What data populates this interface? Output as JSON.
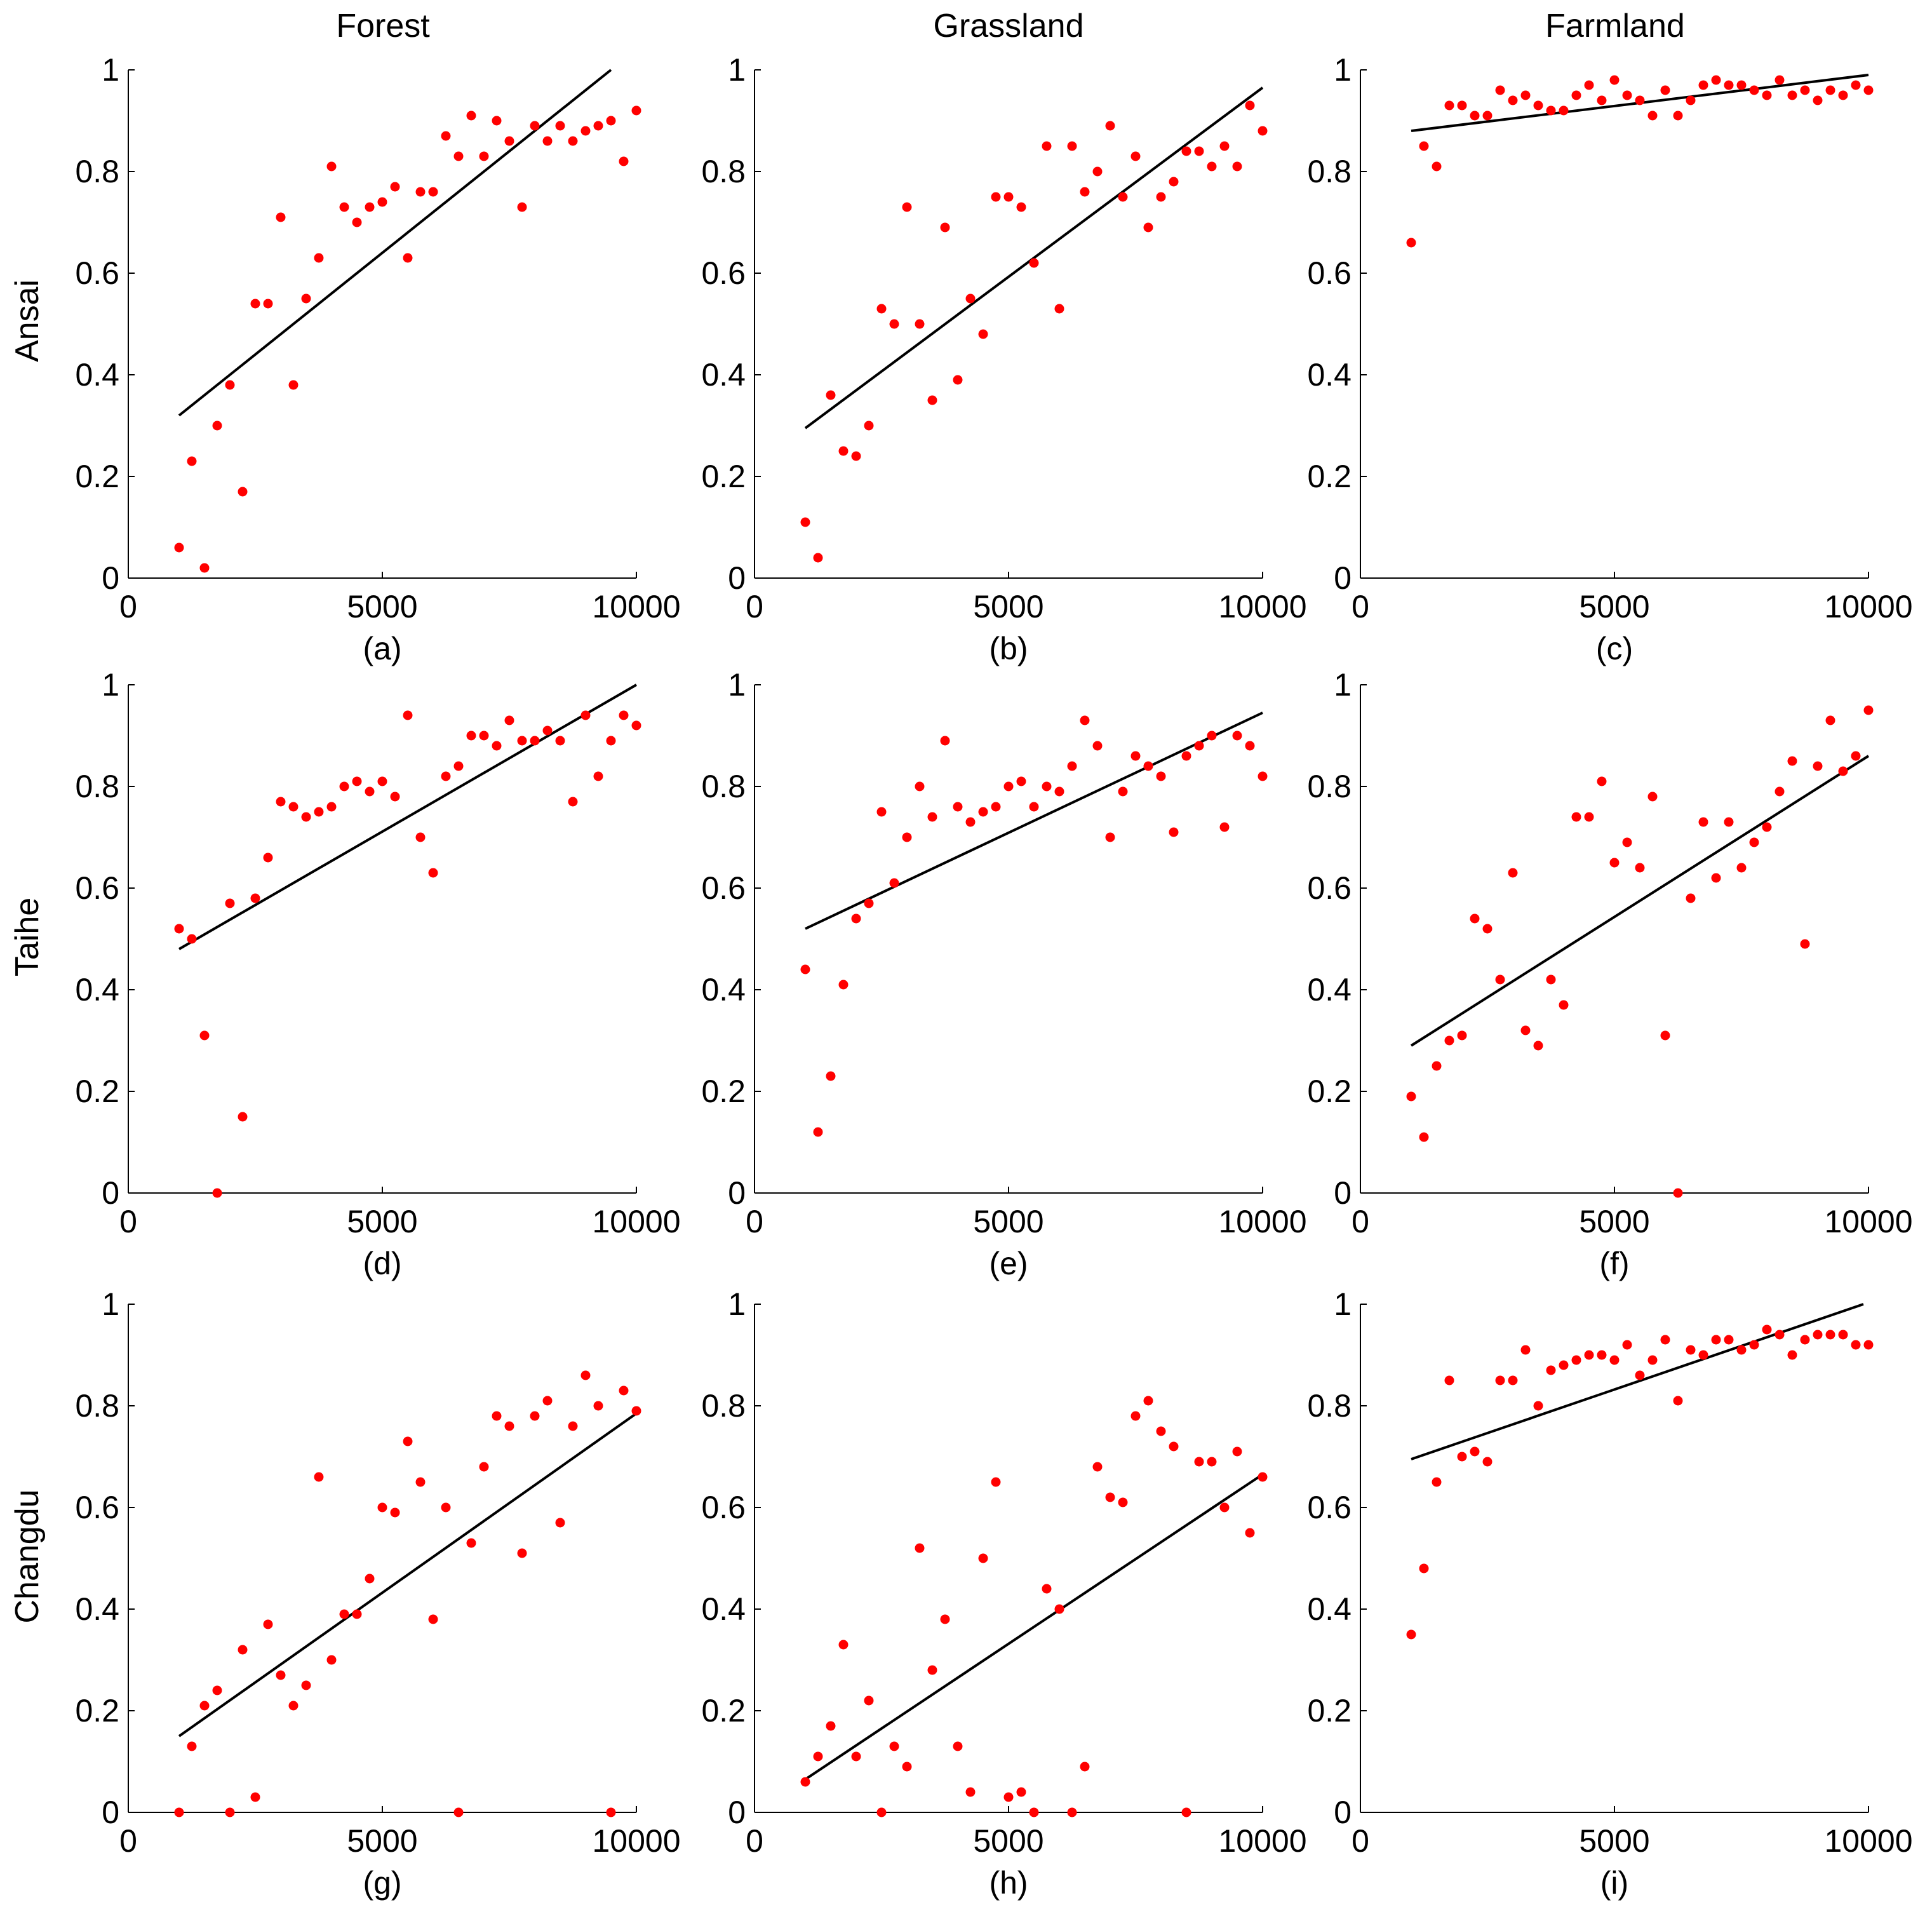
{
  "columns": [
    "Forest",
    "Grassland",
    "Farmland"
  ],
  "rows": [
    "Ansai",
    "Taihe",
    "Changdu"
  ],
  "colors": {
    "points": "#ff0000",
    "fit_line": "#000000",
    "axes": "#000000"
  },
  "chart_data": [
    {
      "type": "scatter",
      "label": "(a)",
      "row": "Ansai",
      "column": "Forest",
      "xlim": [
        0,
        10000
      ],
      "ylim": [
        0,
        1
      ],
      "xticks": [
        "0",
        "5000",
        "10000"
      ],
      "yticks": [
        "0",
        "0.2",
        "0.4",
        "0.6",
        "0.8",
        "1"
      ],
      "x": [
        1000,
        1250,
        1500,
        1750,
        2000,
        2250,
        2500,
        2750,
        3000,
        3250,
        3500,
        3750,
        4000,
        4250,
        4500,
        4750,
        5000,
        5250,
        5500,
        5750,
        6000,
        6250,
        6500,
        6750,
        7000,
        7250,
        7500,
        7750,
        8000,
        8250,
        8500,
        8750,
        9000,
        9250,
        9500,
        9750,
        10000
      ],
      "y": [
        0.06,
        0.23,
        0.02,
        0.3,
        0.38,
        0.17,
        0.54,
        0.54,
        0.71,
        0.38,
        0.55,
        0.63,
        0.81,
        0.73,
        0.7,
        0.73,
        0.74,
        0.77,
        0.63,
        0.76,
        0.76,
        0.87,
        0.83,
        0.91,
        0.83,
        0.9,
        0.86,
        0.73,
        0.89,
        0.86,
        0.89,
        0.86,
        0.88,
        0.89,
        0.9,
        0.82,
        0.92
      ],
      "fit": {
        "x": [
          1000,
          9500
        ],
        "y": [
          0.32,
          1.0
        ]
      }
    },
    {
      "type": "scatter",
      "label": "(b)",
      "row": "Ansai",
      "column": "Grassland",
      "xlim": [
        0,
        10000
      ],
      "ylim": [
        0,
        1
      ],
      "xticks": [
        "0",
        "5000",
        "10000"
      ],
      "yticks": [
        "0",
        "0.2",
        "0.4",
        "0.6",
        "0.8",
        "1"
      ],
      "x": [
        1000,
        1250,
        1500,
        1750,
        2000,
        2250,
        2500,
        2750,
        3000,
        3250,
        3500,
        3750,
        4000,
        4250,
        4500,
        4750,
        5000,
        5250,
        5500,
        5750,
        6000,
        6250,
        6500,
        6750,
        7000,
        7250,
        7500,
        7750,
        8000,
        8250,
        8500,
        8750,
        9000,
        9250,
        9500,
        9750,
        10000
      ],
      "y": [
        0.11,
        0.04,
        0.36,
        0.25,
        0.24,
        0.3,
        0.53,
        0.5,
        0.73,
        0.5,
        0.35,
        0.69,
        0.39,
        0.55,
        0.48,
        0.75,
        0.75,
        0.73,
        0.62,
        0.85,
        0.53,
        0.85,
        0.76,
        0.8,
        0.89,
        0.75,
        0.83,
        0.69,
        0.75,
        0.78,
        0.84,
        0.84,
        0.81,
        0.85,
        0.81,
        0.93,
        0.88
      ],
      "fit": {
        "x": [
          1000,
          10000
        ],
        "y": [
          0.295,
          0.965
        ]
      }
    },
    {
      "type": "scatter",
      "label": "(c)",
      "row": "Ansai",
      "column": "Farmland",
      "xlim": [
        0,
        10000
      ],
      "ylim": [
        0,
        1
      ],
      "xticks": [
        "0",
        "5000",
        "10000"
      ],
      "yticks": [
        "0",
        "0.2",
        "0.4",
        "0.6",
        "0.8",
        "1"
      ],
      "x": [
        1000,
        1250,
        1500,
        1750,
        2000,
        2250,
        2500,
        2750,
        3000,
        3250,
        3500,
        3750,
        4000,
        4250,
        4500,
        4750,
        5000,
        5250,
        5500,
        5750,
        6000,
        6250,
        6500,
        6750,
        7000,
        7250,
        7500,
        7750,
        8000,
        8250,
        8500,
        8750,
        9000,
        9250,
        9500,
        9750,
        10000
      ],
      "y": [
        0.66,
        0.85,
        0.81,
        0.93,
        0.93,
        0.91,
        0.91,
        0.96,
        0.94,
        0.95,
        0.93,
        0.92,
        0.92,
        0.95,
        0.97,
        0.94,
        0.98,
        0.95,
        0.94,
        0.91,
        0.96,
        0.91,
        0.94,
        0.97,
        0.98,
        0.97,
        0.97,
        0.96,
        0.95,
        0.98,
        0.95,
        0.96,
        0.94,
        0.96,
        0.95,
        0.97,
        0.96
      ],
      "fit": {
        "x": [
          1000,
          10000
        ],
        "y": [
          0.88,
          0.99
        ]
      }
    },
    {
      "type": "scatter",
      "label": "(d)",
      "row": "Taihe",
      "column": "Forest",
      "xlim": [
        0,
        10000
      ],
      "ylim": [
        0,
        1
      ],
      "xticks": [
        "0",
        "5000",
        "10000"
      ],
      "yticks": [
        "0",
        "0.2",
        "0.4",
        "0.6",
        "0.8",
        "1"
      ],
      "x": [
        1000,
        1250,
        1500,
        1750,
        2000,
        2250,
        2500,
        2750,
        3000,
        3250,
        3500,
        3750,
        4000,
        4250,
        4500,
        4750,
        5000,
        5250,
        5500,
        5750,
        6000,
        6250,
        6500,
        6750,
        7000,
        7250,
        7500,
        7750,
        8000,
        8250,
        8500,
        8750,
        9000,
        9250,
        9500,
        9750,
        10000
      ],
      "y": [
        0.52,
        0.5,
        0.31,
        0.0,
        0.57,
        0.15,
        0.58,
        0.66,
        0.77,
        0.76,
        0.74,
        0.75,
        0.76,
        0.8,
        0.81,
        0.79,
        0.81,
        0.78,
        0.94,
        0.7,
        0.63,
        0.82,
        0.84,
        0.9,
        0.9,
        0.88,
        0.93,
        0.89,
        0.89,
        0.91,
        0.89,
        0.77,
        0.94,
        0.82,
        0.89,
        0.94,
        0.92
      ],
      "fit": {
        "x": [
          1000,
          10000
        ],
        "y": [
          0.48,
          1.0
        ]
      }
    },
    {
      "type": "scatter",
      "label": "(e)",
      "row": "Taihe",
      "column": "Grassland",
      "xlim": [
        0,
        10000
      ],
      "ylim": [
        0,
        1
      ],
      "xticks": [
        "0",
        "5000",
        "10000"
      ],
      "yticks": [
        "0",
        "0.2",
        "0.4",
        "0.6",
        "0.8",
        "1"
      ],
      "x": [
        1000,
        1250,
        1500,
        1750,
        2000,
        2250,
        2500,
        2750,
        3000,
        3250,
        3500,
        3750,
        4000,
        4250,
        4500,
        4750,
        5000,
        5250,
        5500,
        5750,
        6000,
        6250,
        6500,
        6750,
        7000,
        7250,
        7500,
        7750,
        8000,
        8250,
        8500,
        8750,
        9000,
        9250,
        9500,
        9750,
        10000
      ],
      "y": [
        0.44,
        0.12,
        0.23,
        0.41,
        0.54,
        0.57,
        0.75,
        0.61,
        0.7,
        0.8,
        0.74,
        0.89,
        0.76,
        0.73,
        0.75,
        0.76,
        0.8,
        0.81,
        0.76,
        0.8,
        0.79,
        0.84,
        0.93,
        0.88,
        0.7,
        0.79,
        0.86,
        0.84,
        0.82,
        0.71,
        0.86,
        0.88,
        0.9,
        0.72,
        0.9,
        0.88,
        0.82
      ],
      "fit": {
        "x": [
          1000,
          10000
        ],
        "y": [
          0.52,
          0.945
        ]
      }
    },
    {
      "type": "scatter",
      "label": "(f)",
      "row": "Taihe",
      "column": "Farmland",
      "xlim": [
        0,
        10000
      ],
      "ylim": [
        0,
        1
      ],
      "xticks": [
        "0",
        "5000",
        "10000"
      ],
      "yticks": [
        "0",
        "0.2",
        "0.4",
        "0.6",
        "0.8",
        "1"
      ],
      "x": [
        1000,
        1250,
        1500,
        1750,
        2000,
        2250,
        2500,
        2750,
        3000,
        3250,
        3500,
        3750,
        4000,
        4250,
        4500,
        4750,
        5000,
        5250,
        5500,
        5750,
        6000,
        6250,
        6500,
        6750,
        7000,
        7250,
        7500,
        7750,
        8000,
        8250,
        8500,
        8750,
        9000,
        9250,
        9500,
        9750,
        10000
      ],
      "y": [
        0.19,
        0.11,
        0.25,
        0.3,
        0.31,
        0.54,
        0.52,
        0.42,
        0.63,
        0.32,
        0.29,
        0.42,
        0.37,
        0.74,
        0.74,
        0.81,
        0.65,
        0.69,
        0.64,
        0.78,
        0.31,
        0.0,
        0.58,
        0.73,
        0.62,
        0.73,
        0.64,
        0.69,
        0.72,
        0.79,
        0.85,
        0.49,
        0.84,
        0.93,
        0.83,
        0.86,
        0.95
      ],
      "fit": {
        "x": [
          1000,
          10000
        ],
        "y": [
          0.29,
          0.86
        ]
      }
    },
    {
      "type": "scatter",
      "label": "(g)",
      "row": "Changdu",
      "column": "Forest",
      "xlim": [
        0,
        10000
      ],
      "ylim": [
        0,
        1
      ],
      "xticks": [
        "0",
        "5000",
        "10000"
      ],
      "yticks": [
        "0",
        "0.2",
        "0.4",
        "0.6",
        "0.8",
        "1"
      ],
      "x": [
        1000,
        1250,
        1500,
        1750,
        2000,
        2250,
        2500,
        2750,
        3000,
        3250,
        3500,
        3750,
        4000,
        4250,
        4500,
        4750,
        5000,
        5250,
        5500,
        5750,
        6000,
        6250,
        6500,
        6750,
        7000,
        7250,
        7500,
        7750,
        8000,
        8250,
        8500,
        8750,
        9000,
        9250,
        9500,
        9750,
        10000
      ],
      "y": [
        0.0,
        0.13,
        0.21,
        0.24,
        0.0,
        0.32,
        0.03,
        0.37,
        0.27,
        0.21,
        0.25,
        0.66,
        0.3,
        0.39,
        0.39,
        0.46,
        0.6,
        0.59,
        0.73,
        0.65,
        0.38,
        0.6,
        0.0,
        0.53,
        0.68,
        0.78,
        0.76,
        0.51,
        0.78,
        0.81,
        0.57,
        0.76,
        0.86,
        0.8,
        0.0,
        0.83,
        0.79
      ],
      "fit": {
        "x": [
          1000,
          10000
        ],
        "y": [
          0.15,
          0.785
        ]
      }
    },
    {
      "type": "scatter",
      "label": "(h)",
      "row": "Changdu",
      "column": "Grassland",
      "xlim": [
        0,
        10000
      ],
      "ylim": [
        0,
        1
      ],
      "xticks": [
        "0",
        "5000",
        "10000"
      ],
      "yticks": [
        "0",
        "0.2",
        "0.4",
        "0.6",
        "0.8",
        "1"
      ],
      "x": [
        1000,
        1250,
        1500,
        1750,
        2000,
        2250,
        2500,
        2750,
        3000,
        3250,
        3500,
        3750,
        4000,
        4250,
        4500,
        4750,
        5000,
        5250,
        5500,
        5750,
        6000,
        6250,
        6500,
        6750,
        7000,
        7250,
        7500,
        7750,
        8000,
        8250,
        8500,
        8750,
        9000,
        9250,
        9500,
        9750,
        10000
      ],
      "y": [
        0.06,
        0.11,
        0.17,
        0.33,
        0.11,
        0.22,
        0.0,
        0.13,
        0.09,
        0.52,
        0.28,
        0.38,
        0.13,
        0.04,
        0.5,
        0.65,
        0.03,
        0.04,
        0.0,
        0.44,
        0.4,
        0.0,
        0.09,
        0.68,
        0.62,
        0.61,
        0.78,
        0.81,
        0.75,
        0.72,
        0.0,
        0.69,
        0.69,
        0.6,
        0.71,
        0.55,
        0.66
      ],
      "fit": {
        "x": [
          1000,
          10000
        ],
        "y": [
          0.065,
          0.665
        ]
      }
    },
    {
      "type": "scatter",
      "label": "(i)",
      "row": "Changdu",
      "column": "Farmland",
      "xlim": [
        0,
        10000
      ],
      "ylim": [
        0,
        1
      ],
      "xticks": [
        "0",
        "5000",
        "10000"
      ],
      "yticks": [
        "0",
        "0.2",
        "0.4",
        "0.6",
        "0.8",
        "1"
      ],
      "x": [
        1000,
        1250,
        1500,
        1750,
        2000,
        2250,
        2500,
        2750,
        3000,
        3250,
        3500,
        3750,
        4000,
        4250,
        4500,
        4750,
        5000,
        5250,
        5500,
        5750,
        6000,
        6250,
        6500,
        6750,
        7000,
        7250,
        7500,
        7750,
        8000,
        8250,
        8500,
        8750,
        9000,
        9250,
        9500,
        9750,
        10000
      ],
      "y": [
        0.35,
        0.48,
        0.65,
        0.85,
        0.7,
        0.71,
        0.69,
        0.85,
        0.85,
        0.91,
        0.8,
        0.87,
        0.88,
        0.89,
        0.9,
        0.9,
        0.89,
        0.92,
        0.86,
        0.89,
        0.93,
        0.81,
        0.91,
        0.9,
        0.93,
        0.93,
        0.91,
        0.92,
        0.95,
        0.94,
        0.9,
        0.93,
        0.94,
        0.94,
        0.94,
        0.92,
        0.92
      ],
      "fit": {
        "x": [
          1000,
          9900
        ],
        "y": [
          0.695,
          1.0
        ]
      }
    }
  ]
}
